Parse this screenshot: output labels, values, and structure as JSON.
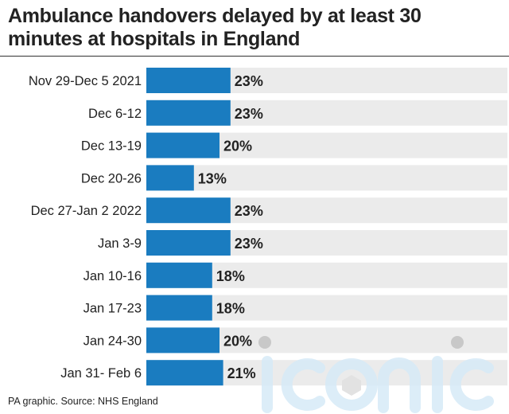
{
  "title": "Ambulance handovers delayed by at least 30 minutes at hospitals in England",
  "source": "PA graphic. Source: NHS England",
  "watermark": "iconic",
  "colors": {
    "bar": "#1a7cc0",
    "track": "#ebebeb",
    "text": "#222222"
  },
  "chart_data": {
    "type": "bar",
    "orientation": "horizontal",
    "categories": [
      "Nov 29-Dec 5 2021",
      "Dec 6-12",
      "Dec 13-19",
      "Dec 20-26",
      "Dec 27-Jan 2 2022",
      "Jan 3-9",
      "Jan 10-16",
      "Jan 17-23",
      "Jan 24-30",
      "Jan 31- Feb 6"
    ],
    "values": [
      23,
      23,
      20,
      13,
      23,
      23,
      18,
      18,
      20,
      21
    ],
    "value_labels": [
      "23%",
      "23%",
      "20%",
      "13%",
      "23%",
      "23%",
      "18%",
      "18%",
      "20%",
      "21%"
    ],
    "unit": "%",
    "xlim": [
      0,
      100
    ],
    "grid": false,
    "title": "Ambulance handovers delayed by at least 30 minutes at hospitals in England"
  }
}
